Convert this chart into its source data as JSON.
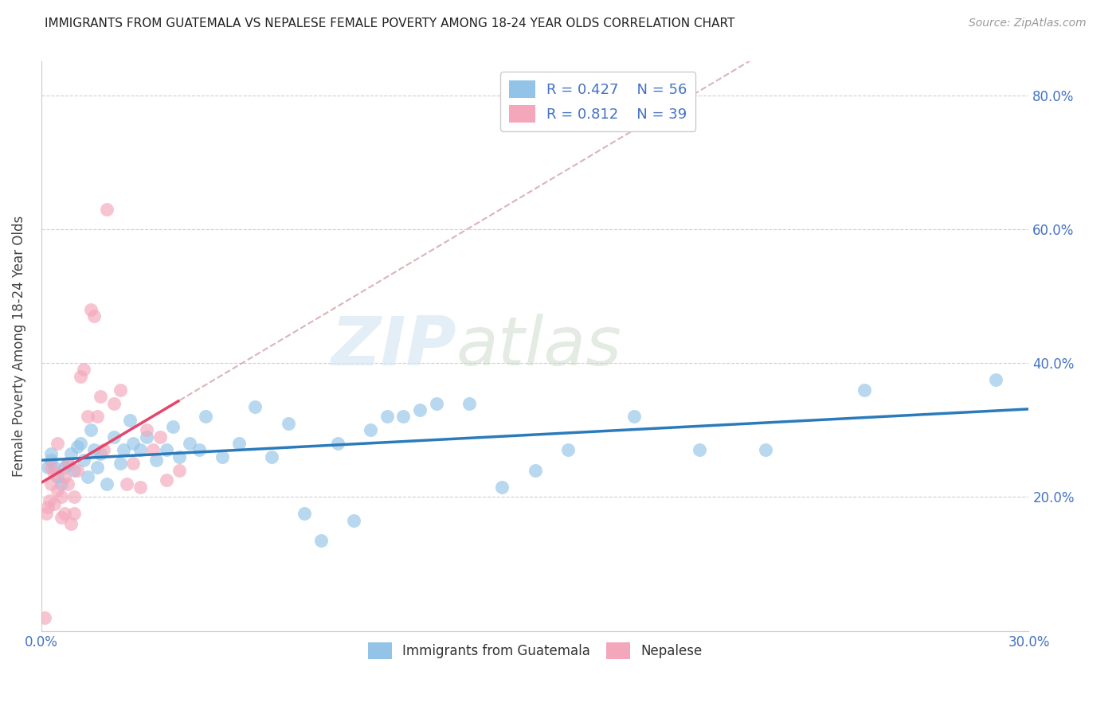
{
  "title": "IMMIGRANTS FROM GUATEMALA VS NEPALESE FEMALE POVERTY AMONG 18-24 YEAR OLDS CORRELATION CHART",
  "source": "Source: ZipAtlas.com",
  "ylabel": "Female Poverty Among 18-24 Year Olds",
  "xlim": [
    0.0,
    0.3
  ],
  "ylim": [
    0.0,
    0.85
  ],
  "xticks": [
    0.0,
    0.05,
    0.1,
    0.15,
    0.2,
    0.25,
    0.3
  ],
  "xtick_labels": [
    "0.0%",
    "",
    "",
    "",
    "",
    "",
    "30.0%"
  ],
  "yticks": [
    0.0,
    0.2,
    0.4,
    0.6,
    0.8
  ],
  "ytick_labels_right": [
    "",
    "20.0%",
    "40.0%",
    "60.0%",
    "80.0%"
  ],
  "legend_r1": "R = 0.427",
  "legend_n1": "N = 56",
  "legend_r2": "R = 0.812",
  "legend_n2": "N = 39",
  "blue_color": "#93c4e8",
  "pink_color": "#f4a7bb",
  "trend_blue": "#2b7bba",
  "trend_pink": "#e8436a",
  "dash_color": "#d4a0a8",
  "guatemala_x": [
    0.002,
    0.003,
    0.003,
    0.004,
    0.005,
    0.006,
    0.007,
    0.008,
    0.009,
    0.01,
    0.011,
    0.012,
    0.013,
    0.014,
    0.015,
    0.016,
    0.017,
    0.018,
    0.02,
    0.022,
    0.024,
    0.025,
    0.027,
    0.028,
    0.03,
    0.032,
    0.035,
    0.038,
    0.04,
    0.042,
    0.045,
    0.048,
    0.05,
    0.055,
    0.06,
    0.065,
    0.07,
    0.075,
    0.08,
    0.085,
    0.09,
    0.095,
    0.1,
    0.105,
    0.11,
    0.115,
    0.12,
    0.13,
    0.14,
    0.15,
    0.16,
    0.18,
    0.2,
    0.22,
    0.25,
    0.29
  ],
  "guatemala_y": [
    0.245,
    0.265,
    0.255,
    0.245,
    0.23,
    0.22,
    0.245,
    0.25,
    0.265,
    0.24,
    0.275,
    0.28,
    0.255,
    0.23,
    0.3,
    0.27,
    0.245,
    0.265,
    0.22,
    0.29,
    0.25,
    0.27,
    0.315,
    0.28,
    0.27,
    0.29,
    0.255,
    0.27,
    0.305,
    0.26,
    0.28,
    0.27,
    0.32,
    0.26,
    0.28,
    0.335,
    0.26,
    0.31,
    0.175,
    0.135,
    0.28,
    0.165,
    0.3,
    0.32,
    0.32,
    0.33,
    0.34,
    0.34,
    0.215,
    0.24,
    0.27,
    0.32,
    0.27,
    0.27,
    0.36,
    0.375
  ],
  "nepalese_x": [
    0.001,
    0.0015,
    0.002,
    0.0025,
    0.003,
    0.003,
    0.004,
    0.004,
    0.005,
    0.005,
    0.006,
    0.006,
    0.007,
    0.007,
    0.008,
    0.008,
    0.009,
    0.01,
    0.01,
    0.011,
    0.012,
    0.013,
    0.014,
    0.015,
    0.016,
    0.017,
    0.018,
    0.019,
    0.02,
    0.022,
    0.024,
    0.026,
    0.028,
    0.03,
    0.032,
    0.034,
    0.036,
    0.038,
    0.042
  ],
  "nepalese_y": [
    0.02,
    0.175,
    0.185,
    0.195,
    0.245,
    0.22,
    0.235,
    0.19,
    0.21,
    0.28,
    0.17,
    0.2,
    0.175,
    0.23,
    0.25,
    0.22,
    0.16,
    0.175,
    0.2,
    0.24,
    0.38,
    0.39,
    0.32,
    0.48,
    0.47,
    0.32,
    0.35,
    0.27,
    0.63,
    0.34,
    0.36,
    0.22,
    0.25,
    0.215,
    0.3,
    0.27,
    0.29,
    0.225,
    0.24
  ],
  "watermark_zip": "ZIP",
  "watermark_atlas": "atlas",
  "background_color": "#ffffff",
  "grid_color": "#d0d0d0"
}
